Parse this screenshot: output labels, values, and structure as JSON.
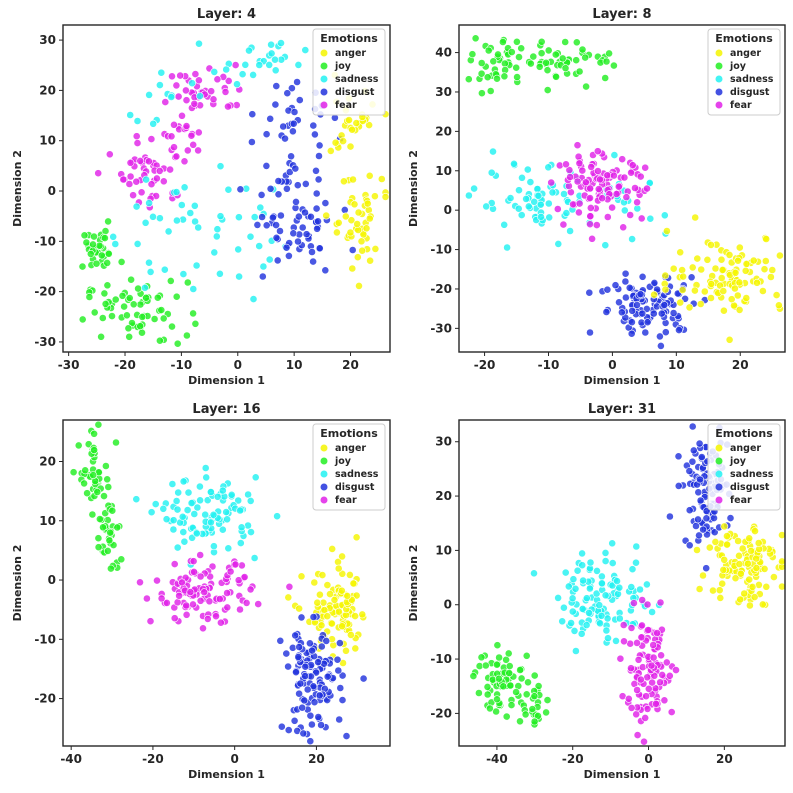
{
  "colors": {
    "anger": "#f5f500",
    "joy": "#22ee22",
    "sadness": "#22f2f2",
    "disgust": "#2233dd",
    "fear": "#e022e8"
  },
  "chart_data": [
    {
      "type": "scatter",
      "title": "Layer: 4",
      "xlabel": "Dimension 1",
      "ylabel": "Dimension 2",
      "xlim": [
        -31,
        27
      ],
      "ylim": [
        -32,
        33
      ],
      "xticks": [
        -30,
        -20,
        -10,
        0,
        10,
        20
      ],
      "yticks": [
        -30,
        -20,
        -10,
        0,
        10,
        20,
        30
      ],
      "legend": {
        "title": "Emotions",
        "position": "top-right",
        "entries": [
          "anger",
          "joy",
          "sadness",
          "disgust",
          "fear"
        ]
      },
      "clusters": [
        {
          "series": "joy",
          "cx": -25,
          "cy": -12,
          "sx": 2.0,
          "sy": 2.0,
          "n": 35
        },
        {
          "series": "joy",
          "cx": -18,
          "cy": -24,
          "sx": 4.5,
          "sy": 3.0,
          "n": 65
        },
        {
          "series": "fear",
          "cx": -15,
          "cy": 4,
          "sx": 3.0,
          "sy": 3.5,
          "n": 50
        },
        {
          "series": "fear",
          "cx": -6,
          "cy": 20,
          "sx": 4.0,
          "sy": 2.5,
          "n": 40
        },
        {
          "series": "fear",
          "cx": -9,
          "cy": 12,
          "sx": 2.5,
          "sy": 2.0,
          "n": 15
        },
        {
          "series": "sadness",
          "cx": -8,
          "cy": -8,
          "sx": 7.0,
          "sy": 7.0,
          "n": 50
        },
        {
          "series": "sadness",
          "cx": 4,
          "cy": 26,
          "sx": 4.0,
          "sy": 2.0,
          "n": 25
        },
        {
          "series": "sadness",
          "cx": -14,
          "cy": 18,
          "sx": 3.0,
          "sy": 3.0,
          "n": 12
        },
        {
          "series": "disgust",
          "cx": 10,
          "cy": -5,
          "sx": 4.0,
          "sy": 6.0,
          "n": 75
        },
        {
          "series": "disgust",
          "cx": 10,
          "cy": 15,
          "sx": 3.0,
          "sy": 4.0,
          "n": 30
        },
        {
          "series": "anger",
          "cx": 21,
          "cy": -6,
          "sx": 2.5,
          "sy": 5.0,
          "n": 50
        },
        {
          "series": "anger",
          "cx": 20,
          "cy": 14,
          "sx": 3.0,
          "sy": 4.0,
          "n": 30
        }
      ]
    },
    {
      "type": "scatter",
      "title": "Layer: 8",
      "xlabel": "Dimension 1",
      "ylabel": "Dimension 2",
      "xlim": [
        -24,
        27
      ],
      "ylim": [
        -36,
        47
      ],
      "xticks": [
        -20,
        -10,
        0,
        10,
        20
      ],
      "yticks": [
        -30,
        -20,
        -10,
        0,
        10,
        20,
        30,
        40
      ],
      "legend": {
        "title": "Emotions",
        "position": "top-right",
        "entries": [
          "anger",
          "joy",
          "sadness",
          "disgust",
          "fear"
        ]
      },
      "clusters": [
        {
          "series": "joy",
          "cx": -18,
          "cy": 37,
          "sx": 2.0,
          "sy": 3.0,
          "n": 45
        },
        {
          "series": "joy",
          "cx": -6,
          "cy": 38,
          "sx": 3.5,
          "sy": 2.5,
          "n": 45
        },
        {
          "series": "sadness",
          "cx": -12,
          "cy": 2,
          "sx": 4.5,
          "sy": 4.5,
          "n": 65
        },
        {
          "series": "sadness",
          "cx": 2,
          "cy": 0,
          "sx": 3.0,
          "sy": 5.0,
          "n": 20
        },
        {
          "series": "fear",
          "cx": -2,
          "cy": 6,
          "sx": 3.5,
          "sy": 4.0,
          "n": 110
        },
        {
          "series": "disgust",
          "cx": 6,
          "cy": -24,
          "sx": 4.0,
          "sy": 4.0,
          "n": 110
        },
        {
          "series": "anger",
          "cx": 18,
          "cy": -16,
          "sx": 4.5,
          "sy": 5.0,
          "n": 100
        }
      ]
    },
    {
      "type": "scatter",
      "title": "Layer: 16",
      "xlabel": "Dimension 1",
      "ylabel": "Dimension 2",
      "xlim": [
        -42,
        38
      ],
      "ylim": [
        -28,
        27
      ],
      "xticks": [
        -40,
        -20,
        0,
        20
      ],
      "yticks": [
        -20,
        -10,
        0,
        10,
        20
      ],
      "legend": {
        "title": "Emotions",
        "position": "top-right",
        "entries": [
          "anger",
          "joy",
          "sadness",
          "disgust",
          "fear"
        ]
      },
      "clusters": [
        {
          "series": "joy",
          "cx": -34,
          "cy": 18,
          "sx": 2.0,
          "sy": 3.0,
          "n": 45
        },
        {
          "series": "joy",
          "cx": -31,
          "cy": 7,
          "sx": 1.5,
          "sy": 3.5,
          "n": 35
        },
        {
          "series": "sadness",
          "cx": -6,
          "cy": 11,
          "sx": 6.0,
          "sy": 3.0,
          "n": 100
        },
        {
          "series": "fear",
          "cx": -8,
          "cy": -2,
          "sx": 6.0,
          "sy": 2.5,
          "n": 110
        },
        {
          "series": "anger",
          "cx": 25,
          "cy": -6,
          "sx": 4.0,
          "sy": 4.0,
          "n": 100
        },
        {
          "series": "disgust",
          "cx": 19,
          "cy": -17,
          "sx": 3.5,
          "sy": 4.5,
          "n": 120
        }
      ]
    },
    {
      "type": "scatter",
      "title": "Layer: 31",
      "xlabel": "Dimension 1",
      "ylabel": "Dimension 2",
      "xlim": [
        -50,
        36
      ],
      "ylim": [
        -26,
        34
      ],
      "xticks": [
        -40,
        -20,
        0,
        20
      ],
      "yticks": [
        -20,
        -10,
        0,
        10,
        20,
        30
      ],
      "legend": {
        "title": "Emotions",
        "position": "top-right",
        "entries": [
          "anger",
          "joy",
          "sadness",
          "disgust",
          "fear"
        ]
      },
      "clusters": [
        {
          "series": "joy",
          "cx": -38,
          "cy": -14,
          "sx": 4.0,
          "sy": 3.0,
          "n": 70
        },
        {
          "series": "joy",
          "cx": -30,
          "cy": -19,
          "sx": 2.0,
          "sy": 2.0,
          "n": 20
        },
        {
          "series": "sadness",
          "cx": -12,
          "cy": 1,
          "sx": 6.0,
          "sy": 4.0,
          "n": 110
        },
        {
          "series": "fear",
          "cx": 0,
          "cy": -12,
          "sx": 3.5,
          "sy": 5.0,
          "n": 110
        },
        {
          "series": "disgust",
          "cx": 15,
          "cy": 21,
          "sx": 3.0,
          "sy": 5.0,
          "n": 110
        },
        {
          "series": "anger",
          "cx": 25,
          "cy": 8,
          "sx": 4.5,
          "sy": 4.0,
          "n": 110
        }
      ]
    }
  ]
}
